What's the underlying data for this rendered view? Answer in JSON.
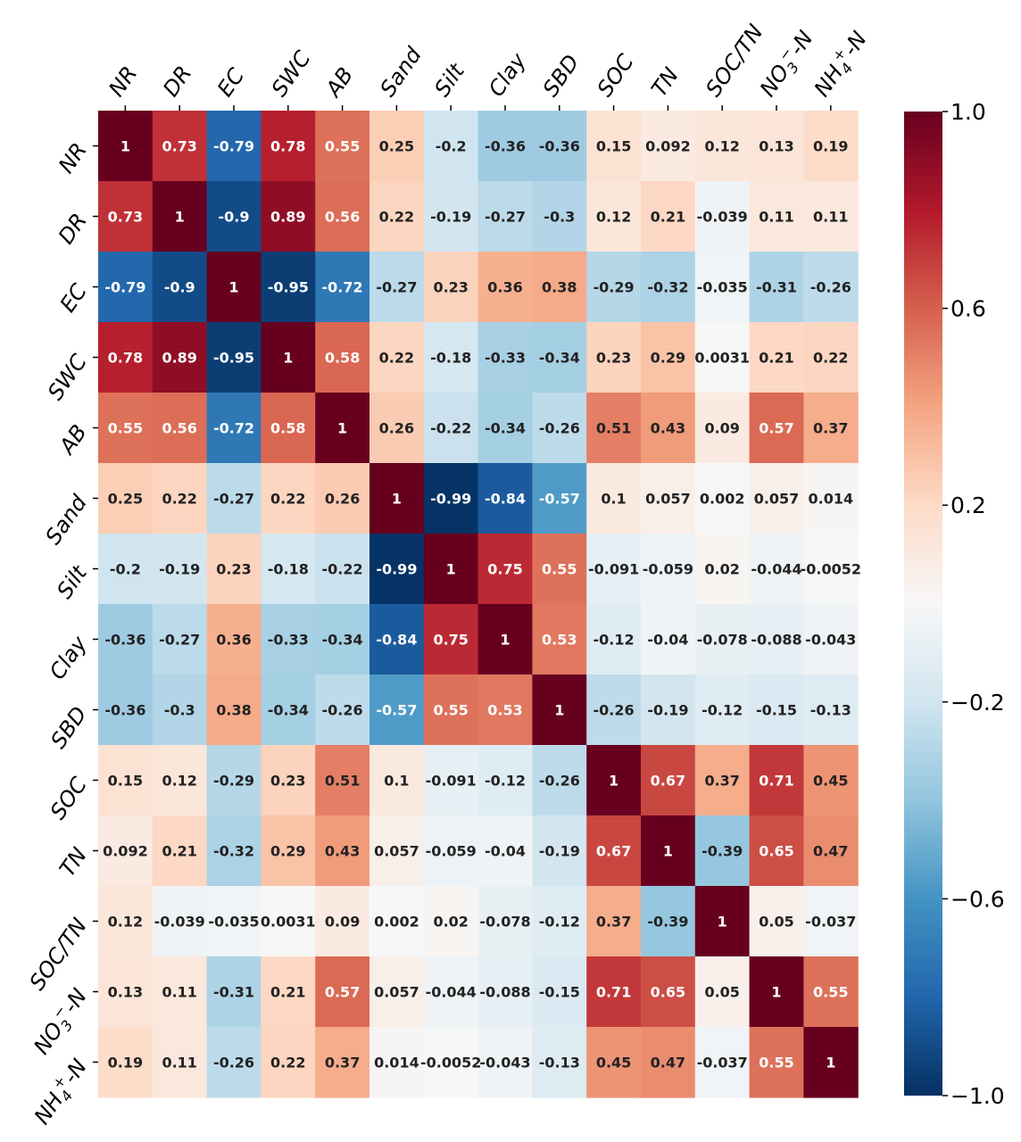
{
  "chart_data": {
    "type": "heatmap",
    "title": "",
    "xlabel": "",
    "ylabel": "",
    "variables": [
      {
        "text": "NR"
      },
      {
        "text": "DR"
      },
      {
        "text": "EC"
      },
      {
        "text": "SWC"
      },
      {
        "text": "AB"
      },
      {
        "text": "Sand"
      },
      {
        "text": "Silt"
      },
      {
        "text": "Clay"
      },
      {
        "text": "SBD"
      },
      {
        "text": "SOC"
      },
      {
        "text": "TN"
      },
      {
        "text": "SOC/TN"
      },
      {
        "text": "NO3−-N",
        "base": "NO",
        "sub": "3",
        "sup": "−",
        "suffix": "-N"
      },
      {
        "text": "NH4+-N",
        "base": "NH",
        "sub": "4",
        "sup": "+",
        "suffix": "-N"
      }
    ],
    "values": [
      [
        1,
        0.73,
        -0.79,
        0.78,
        0.55,
        0.25,
        -0.2,
        -0.36,
        -0.36,
        0.15,
        0.092,
        0.12,
        0.13,
        0.19
      ],
      [
        0.73,
        1,
        -0.9,
        0.89,
        0.56,
        0.22,
        -0.19,
        -0.27,
        -0.3,
        0.12,
        0.21,
        -0.039,
        0.11,
        0.11
      ],
      [
        -0.79,
        -0.9,
        1,
        -0.95,
        -0.72,
        -0.27,
        0.23,
        0.36,
        0.38,
        -0.29,
        -0.32,
        -0.035,
        -0.31,
        -0.26
      ],
      [
        0.78,
        0.89,
        -0.95,
        1,
        0.58,
        0.22,
        -0.18,
        -0.33,
        -0.34,
        0.23,
        0.29,
        0.0031,
        0.21,
        0.22
      ],
      [
        0.55,
        0.56,
        -0.72,
        0.58,
        1,
        0.26,
        -0.22,
        -0.34,
        -0.26,
        0.51,
        0.43,
        0.09,
        0.57,
        0.37
      ],
      [
        0.25,
        0.22,
        -0.27,
        0.22,
        0.26,
        1,
        -0.99,
        -0.84,
        -0.57,
        0.1,
        0.057,
        0.002,
        0.057,
        0.014
      ],
      [
        -0.2,
        -0.19,
        0.23,
        -0.18,
        -0.22,
        -0.99,
        1,
        0.75,
        0.55,
        -0.091,
        -0.059,
        0.02,
        -0.044,
        -0.0052
      ],
      [
        -0.36,
        -0.27,
        0.36,
        -0.33,
        -0.34,
        -0.84,
        0.75,
        1,
        0.53,
        -0.12,
        -0.04,
        -0.078,
        -0.088,
        -0.043
      ],
      [
        -0.36,
        -0.3,
        0.38,
        -0.34,
        -0.26,
        -0.57,
        0.55,
        0.53,
        1,
        -0.26,
        -0.19,
        -0.12,
        -0.15,
        -0.13
      ],
      [
        0.15,
        0.12,
        -0.29,
        0.23,
        0.51,
        0.1,
        -0.091,
        -0.12,
        -0.26,
        1,
        0.67,
        0.37,
        0.71,
        0.45
      ],
      [
        0.092,
        0.21,
        -0.32,
        0.29,
        0.43,
        0.057,
        -0.059,
        -0.04,
        -0.19,
        0.67,
        1,
        -0.39,
        0.65,
        0.47
      ],
      [
        0.12,
        -0.039,
        -0.035,
        0.0031,
        0.09,
        0.002,
        0.02,
        -0.078,
        -0.12,
        0.37,
        -0.39,
        1,
        0.05,
        -0.037
      ],
      [
        0.13,
        0.11,
        -0.31,
        0.21,
        0.57,
        0.057,
        -0.044,
        -0.088,
        -0.15,
        0.71,
        0.65,
        0.05,
        1,
        0.55
      ],
      [
        0.19,
        0.11,
        -0.26,
        0.22,
        0.37,
        0.014,
        -0.0052,
        -0.043,
        -0.13,
        0.45,
        0.47,
        -0.037,
        0.55,
        1
      ]
    ],
    "value_range": [
      -1.0,
      1.0
    ],
    "colorbar": {
      "ticks": [
        1.0,
        0.6,
        0.2,
        -0.2,
        -0.6,
        -1.0
      ],
      "tick_labels": [
        "1.0",
        "0.6",
        "0.2",
        "−0.2",
        "−0.6",
        "−1.0"
      ],
      "colormap": "RdBu_r",
      "colors": [
        "#053061",
        "#2166ac",
        "#4393c3",
        "#92c5de",
        "#d1e5f0",
        "#f7f7f7",
        "#fddbc7",
        "#f4a582",
        "#d6604d",
        "#b2182b",
        "#67001f"
      ]
    },
    "grid": false,
    "legend": "colorbar-right"
  }
}
